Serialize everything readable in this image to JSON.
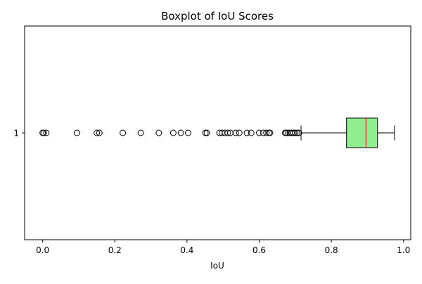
{
  "chart_data": {
    "type": "boxplot",
    "orientation": "horizontal",
    "title": "Boxplot of IoU Scores",
    "xlabel": "IoU",
    "ylabel": "",
    "xlim": [
      -0.05,
      1.02
    ],
    "xticks": [
      0.0,
      0.2,
      0.4,
      0.6,
      0.8,
      1.0
    ],
    "xtick_labels": [
      "0.0",
      "0.2",
      "0.4",
      "0.6",
      "0.8",
      "1.0"
    ],
    "categories": [
      "1"
    ],
    "grid": false,
    "legend": "none",
    "box": {
      "whisker_low": 0.716,
      "q1": 0.842,
      "median": 0.896,
      "q3": 0.928,
      "whisker_high": 0.975
    },
    "outliers": [
      0.0,
      0.003,
      0.01,
      0.095,
      0.15,
      0.157,
      0.222,
      0.272,
      0.322,
      0.362,
      0.383,
      0.403,
      0.451,
      0.455,
      0.49,
      0.497,
      0.505,
      0.513,
      0.52,
      0.535,
      0.545,
      0.566,
      0.578,
      0.6,
      0.611,
      0.62,
      0.627,
      0.63,
      0.672,
      0.675,
      0.68,
      0.685,
      0.69,
      0.695,
      0.7,
      0.705,
      0.71
    ],
    "colors": {
      "box_fill": "#90EE90",
      "median_line": "#D62728",
      "box_edge": "#000000",
      "whisker": "#000000",
      "outlier_edge": "#000000"
    }
  }
}
